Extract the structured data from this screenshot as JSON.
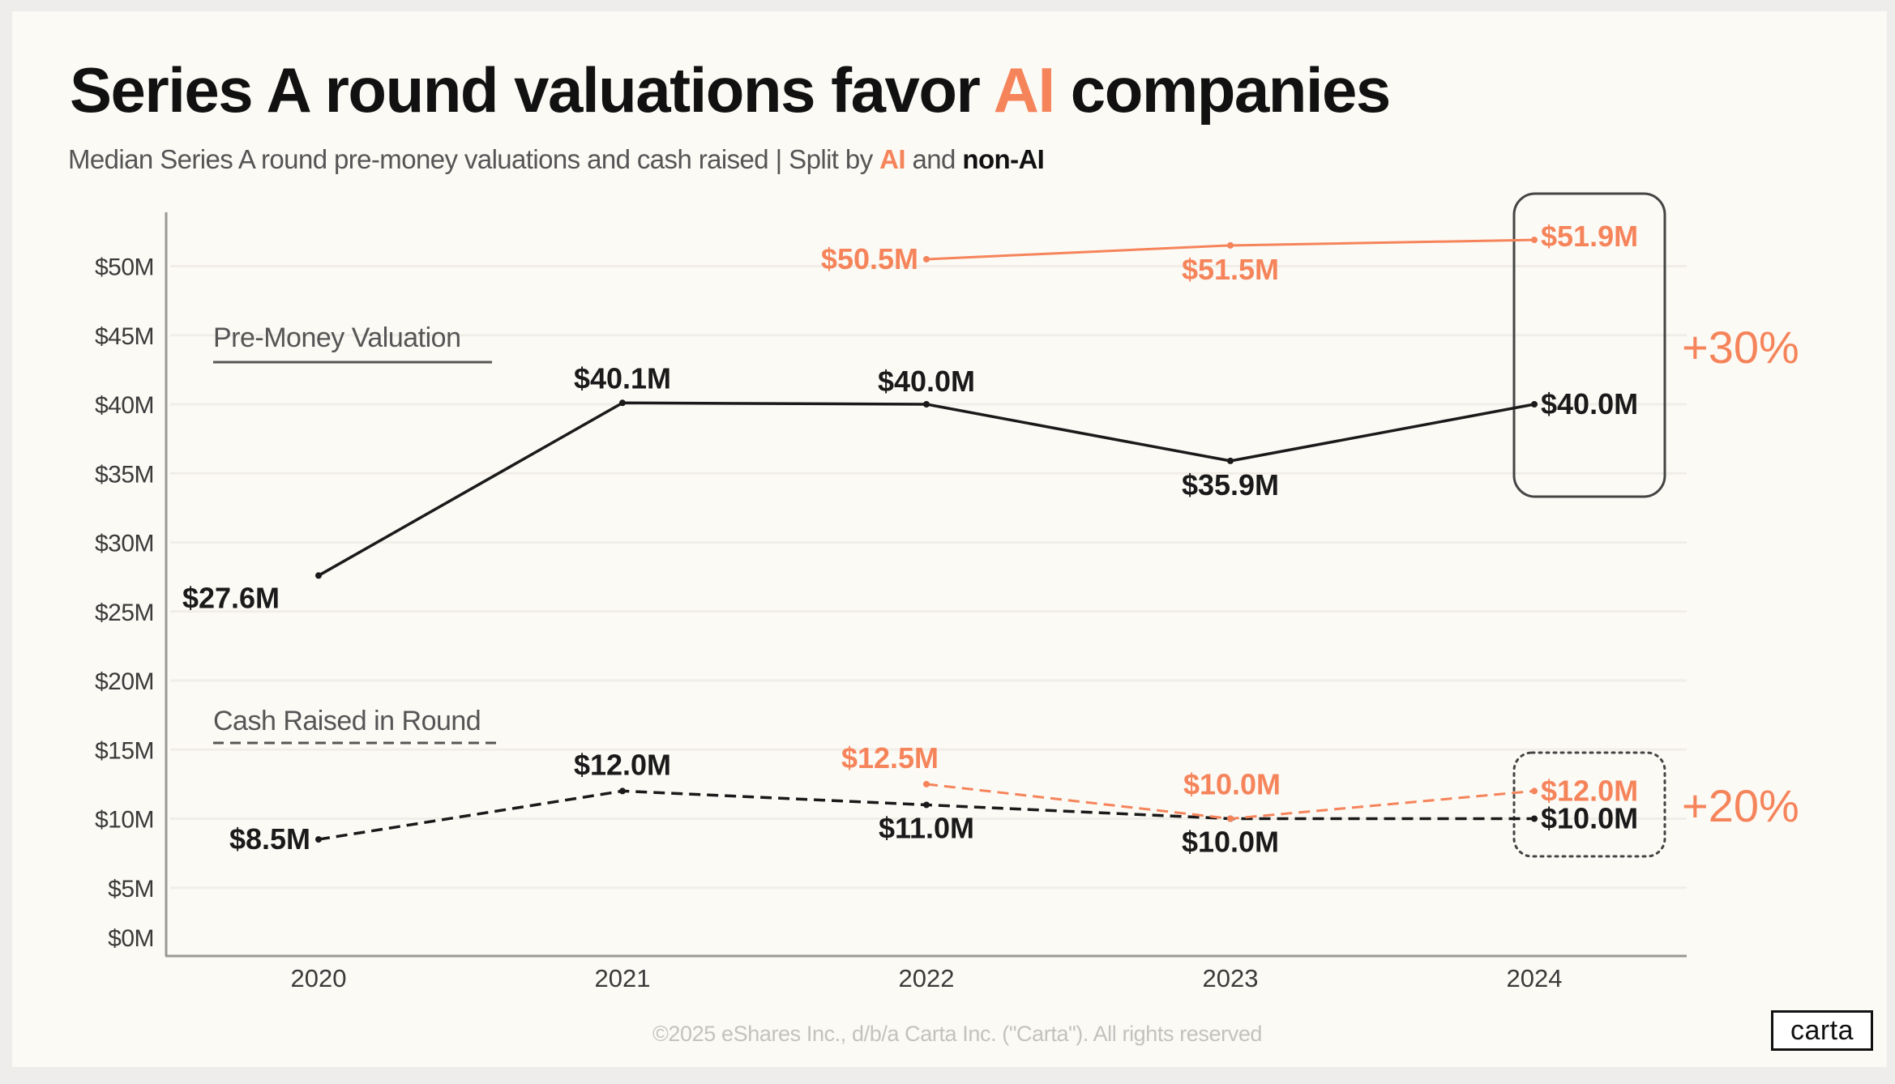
{
  "header": {
    "title_part1": "Series A round valuations favor ",
    "title_highlight": "AI",
    "title_part2": " companies",
    "subtitle_part1": "Median Series A round pre-money valuations and cash raised | Split by ",
    "subtitle_ai": "AI",
    "subtitle_and": " and ",
    "subtitle_nonai": "non-AI"
  },
  "colors": {
    "ai": "#f5845b",
    "non_ai": "#1a1a1a",
    "axis": "#9a9894",
    "grid": "#f1eee8",
    "legend_text": "#555555"
  },
  "chart_data": {
    "type": "line",
    "title": "Series A round valuations favor AI companies",
    "subtitle": "Median Series A round pre-money valuations and cash raised | Split by AI and non-AI",
    "categories": [
      "2020",
      "2021",
      "2022",
      "2023",
      "2024"
    ],
    "y_ticks": [
      "$0M",
      "$5M",
      "$10M",
      "$15M",
      "$20M",
      "$25M",
      "$30M",
      "$35M",
      "$40M",
      "$45M",
      "$50M"
    ],
    "y_tick_values": [
      0,
      5,
      10,
      15,
      20,
      25,
      30,
      35,
      40,
      45,
      50
    ],
    "ylim": [
      0,
      54
    ],
    "yunit": "$M",
    "grid": true,
    "legend": [
      {
        "label": "Pre-Money Valuation",
        "style": "solid",
        "placement": "upper-left"
      },
      {
        "label": "Cash Raised in Round",
        "style": "dashed",
        "placement": "middle-left"
      }
    ],
    "series": [
      {
        "name": "Pre-Money Valuation (non-AI)",
        "group": "non_ai",
        "style": "solid",
        "values": [
          27.6,
          40.1,
          40.0,
          35.9,
          40.0
        ],
        "labels": [
          "$27.6M",
          "$40.1M",
          "$40.0M",
          "$35.9M",
          "$40.0M"
        ]
      },
      {
        "name": "Pre-Money Valuation (AI)",
        "group": "ai",
        "style": "solid",
        "values": [
          null,
          null,
          50.5,
          51.5,
          51.9
        ],
        "labels": [
          null,
          null,
          "$50.5M",
          "$51.5M",
          "$51.9M"
        ]
      },
      {
        "name": "Cash Raised in Round (non-AI)",
        "group": "non_ai",
        "style": "dashed",
        "values": [
          8.5,
          12.0,
          11.0,
          10.0,
          10.0
        ],
        "labels": [
          "$8.5M",
          "$12.0M",
          "$11.0M",
          "$10.0M",
          "$10.0M"
        ]
      },
      {
        "name": "Cash Raised in Round (AI)",
        "group": "ai",
        "style": "dashed",
        "values": [
          null,
          null,
          12.5,
          10.0,
          12.0
        ],
        "labels": [
          null,
          null,
          "$12.5M",
          "$10.0M",
          "$12.0M"
        ]
      }
    ],
    "annotations": [
      {
        "text": "+30%",
        "target": "2024 pre-money valuation, AI vs non-AI",
        "box_style": "solid-rounded"
      },
      {
        "text": "+20%",
        "target": "2024 cash raised, AI vs non-AI",
        "box_style": "dotted-rounded"
      }
    ]
  },
  "footer": {
    "copyright": "©2025 eShares Inc., d/b/a Carta Inc. (\"Carta\"). All rights reserved",
    "logo": "carta"
  }
}
